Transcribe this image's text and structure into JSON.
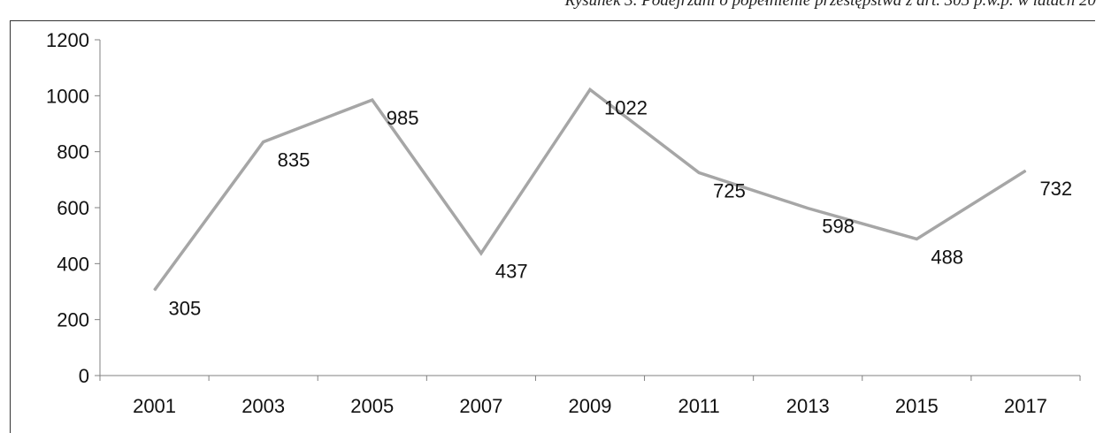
{
  "caption": "Rysunek 3. Podejrzani o popełnienie przestępstwa z art. 305 p.w.p. w latach 20",
  "chart_data": {
    "type": "line",
    "categories": [
      "2001",
      "2003",
      "2005",
      "2007",
      "2009",
      "2011",
      "2013",
      "2015",
      "2017"
    ],
    "values": [
      305,
      835,
      985,
      437,
      1022,
      725,
      598,
      488,
      732
    ],
    "data_labels": [
      "305",
      "835",
      "985",
      "437",
      "1022",
      "725",
      "598",
      "488",
      "732"
    ],
    "y_ticks": [
      "0",
      "200",
      "400",
      "600",
      "800",
      "1000",
      "1200"
    ],
    "ylim": [
      0,
      1200
    ],
    "line_color": "#a6a6a6",
    "axis_color": "#808080",
    "gridlines": false,
    "legend": "none"
  }
}
